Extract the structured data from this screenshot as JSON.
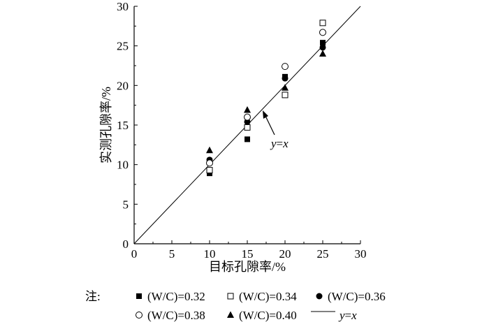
{
  "chart_data": {
    "type": "scatter",
    "title": "",
    "xlabel": "目标孔隙率/%",
    "ylabel": "实测孔隙率/%",
    "xlim": [
      0,
      30
    ],
    "ylim": [
      0,
      30
    ],
    "xticks": [
      "0",
      "5",
      "10",
      "15",
      "20",
      "25",
      "30"
    ],
    "yticks": [
      "0",
      "5",
      "10",
      "15",
      "20",
      "25",
      "30"
    ],
    "grid": false,
    "annotation": {
      "text_italic": "y",
      "text_eq": "=",
      "text_italic2": "x",
      "points_to": [
        17,
        16.5
      ]
    },
    "reference_line": {
      "name": "y=x",
      "from": [
        0,
        0
      ],
      "to": [
        30,
        30
      ]
    },
    "legend_prefix": "注:",
    "legend_placement": "bottom",
    "x": [
      10,
      15,
      20,
      25
    ],
    "series": [
      {
        "name": "(W/C)=0.32",
        "marker": "filled-square",
        "values": [
          8.9,
          13.2,
          21.1,
          25.4
        ]
      },
      {
        "name": "(W/C)=0.34",
        "marker": "open-square",
        "values": [
          9.3,
          14.7,
          18.8,
          27.9
        ]
      },
      {
        "name": "(W/C)=0.36",
        "marker": "filled-circle",
        "values": [
          10.6,
          15.4,
          20.9,
          24.8
        ]
      },
      {
        "name": "(W/C)=0.38",
        "marker": "open-circle",
        "values": [
          10.2,
          16.0,
          22.4,
          26.7
        ]
      },
      {
        "name": "(W/C)=0.40",
        "marker": "filled-triangle",
        "values": [
          11.8,
          16.9,
          19.7,
          24.0
        ]
      }
    ],
    "legend_line_label": {
      "italic1": "y",
      "eq": "=",
      "italic2": "x"
    }
  }
}
